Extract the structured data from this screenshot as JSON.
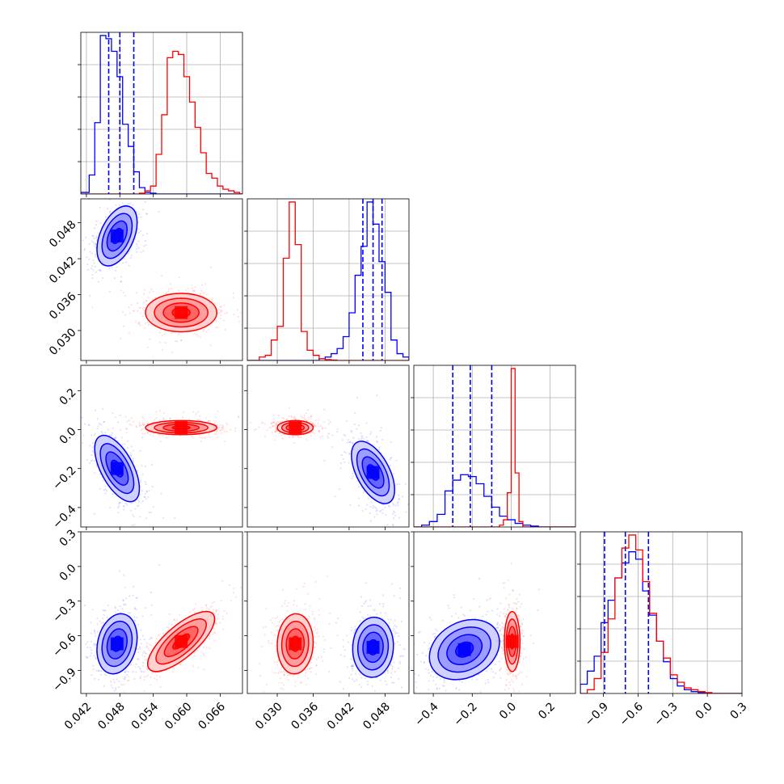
{
  "chart_data": {
    "type": "corner",
    "parameters": [
      {
        "range": [
          0.041,
          0.07
        ],
        "ticks": [
          0.042,
          0.048,
          0.054,
          0.06,
          0.066
        ],
        "tick_labels": [
          "0.042",
          "0.048",
          "0.054",
          "0.060",
          "0.066"
        ]
      },
      {
        "range": [
          0.025,
          0.052
        ],
        "ticks": [
          0.03,
          0.036,
          0.042,
          0.048
        ],
        "tick_labels": [
          "0.030",
          "0.036",
          "0.042",
          "0.048"
        ]
      },
      {
        "range": [
          -0.5,
          0.33
        ],
        "ticks": [
          -0.4,
          -0.2,
          0.0,
          0.2
        ],
        "tick_labels": [
          "−0.4",
          "−0.2",
          "0.0",
          "0.2"
        ]
      },
      {
        "range": [
          -1.1,
          0.3
        ],
        "ticks": [
          -0.9,
          -0.6,
          -0.3,
          0.0,
          0.3
        ],
        "tick_labels": [
          "−0.9",
          "−0.6",
          "−0.3",
          "0.0",
          "0.3"
        ]
      }
    ],
    "series": [
      {
        "color": "#0000ff",
        "histograms": [
          {
            "edges": [
              0.041,
              0.0425,
              0.0435,
              0.0445,
              0.0455,
              0.0465,
              0.0475,
              0.0485,
              0.0495,
              0.0505,
              0.0515,
              0.0525,
              0.0535,
              0.0545
            ],
            "counts": [
              0.01,
              0.12,
              0.45,
              1.0,
              0.98,
              0.9,
              0.74,
              0.44,
              0.3,
              0.14,
              0.04,
              0.01,
              0.005
            ]
          },
          {
            "edges": [
              0.037,
              0.038,
              0.039,
              0.04,
              0.041,
              0.042,
              0.043,
              0.044,
              0.045,
              0.046,
              0.047,
              0.048,
              0.049,
              0.05,
              0.051,
              0.052
            ],
            "counts": [
              0.01,
              0.02,
              0.04,
              0.07,
              0.14,
              0.28,
              0.5,
              0.67,
              0.93,
              0.8,
              0.58,
              0.4,
              0.12,
              0.04,
              0.02
            ]
          },
          {
            "edges": [
              -0.46,
              -0.42,
              -0.38,
              -0.34,
              -0.3,
              -0.26,
              -0.22,
              -0.18,
              -0.14,
              -0.1,
              -0.06,
              -0.02,
              0.02,
              0.06,
              0.1,
              0.14
            ],
            "counts": [
              0.01,
              0.03,
              0.07,
              0.2,
              0.26,
              0.29,
              0.28,
              0.24,
              0.17,
              0.11,
              0.06,
              0.04,
              0.02,
              0.01,
              0.005
            ]
          },
          {
            "edges": [
              -1.1,
              -1.04,
              -0.98,
              -0.92,
              -0.86,
              -0.8,
              -0.74,
              -0.68,
              -0.62,
              -0.56,
              -0.5,
              -0.44,
              -0.38,
              -0.32,
              -0.26,
              -0.2,
              -0.14,
              -0.08,
              -0.02
            ],
            "counts": [
              0.05,
              0.12,
              0.2,
              0.38,
              0.5,
              0.62,
              0.7,
              0.76,
              0.72,
              0.55,
              0.42,
              0.28,
              0.17,
              0.08,
              0.04,
              0.02,
              0.01,
              0.005
            ]
          }
        ],
        "quantiles": [
          [
            0.046,
            0.048,
            0.0505
          ],
          [
            0.0443,
            0.046,
            0.0475
          ],
          [
            -0.3,
            -0.21,
            -0.1
          ],
          [
            -0.89,
            -0.71,
            -0.51
          ]
        ],
        "clouds": {
          "0-1": {
            "mean": [
              0.0475,
              0.0458
            ],
            "sd": [
              0.0018,
              0.0025
            ],
            "rho": 0.45
          },
          "0-2": {
            "mean": [
              0.0475,
              -0.2
            ],
            "sd": [
              0.002,
              0.085
            ],
            "rho": -0.6
          },
          "1-2": {
            "mean": [
              0.046,
              -0.22
            ],
            "sd": [
              0.0018,
              0.08
            ],
            "rho": -0.55
          },
          "0-3": {
            "mean": [
              0.0475,
              -0.67
            ],
            "sd": [
              0.0018,
              0.13
            ],
            "rho": 0.2
          },
          "1-3": {
            "mean": [
              0.046,
              -0.7
            ],
            "sd": [
              0.0017,
              0.13
            ],
            "rho": 0.05
          },
          "2-3": {
            "mean": [
              -0.24,
              -0.72
            ],
            "sd": [
              0.09,
              0.13
            ],
            "rho": 0.25
          }
        }
      },
      {
        "color": "#ff0000",
        "histograms": [
          {
            "edges": [
              0.0515,
              0.0525,
              0.0535,
              0.0545,
              0.0555,
              0.0565,
              0.0575,
              0.0585,
              0.0595,
              0.0605,
              0.0615,
              0.0625,
              0.0635,
              0.0645,
              0.0655,
              0.0665,
              0.0675,
              0.0685,
              0.0695
            ],
            "counts": [
              0.005,
              0.02,
              0.05,
              0.25,
              0.5,
              0.86,
              0.9,
              0.88,
              0.74,
              0.58,
              0.42,
              0.26,
              0.13,
              0.1,
              0.05,
              0.03,
              0.02,
              0.01
            ]
          },
          {
            "edges": [
              0.027,
              0.028,
              0.029,
              0.03,
              0.031,
              0.032,
              0.033,
              0.034,
              0.035,
              0.036,
              0.037,
              0.038,
              0.039,
              0.04
            ],
            "counts": [
              0.02,
              0.03,
              0.12,
              0.2,
              0.6,
              0.93,
              0.68,
              0.17,
              0.06,
              0.03,
              0.01,
              0.005,
              0.002
            ]
          },
          {
            "edges": [
              -0.06,
              -0.04,
              -0.02,
              0.0,
              0.02,
              0.04,
              0.06
            ],
            "counts": [
              0.01,
              0.04,
              0.19,
              0.88,
              0.3,
              0.03
            ]
          },
          {
            "edges": [
              -1.04,
              -0.98,
              -0.92,
              -0.86,
              -0.8,
              -0.74,
              -0.68,
              -0.62,
              -0.56,
              -0.5,
              -0.44,
              -0.38,
              -0.32,
              -0.26,
              -0.2,
              -0.14,
              -0.08,
              -0.02,
              0.04
            ],
            "counts": [
              0.02,
              0.08,
              0.22,
              0.4,
              0.62,
              0.78,
              0.85,
              0.77,
              0.6,
              0.43,
              0.28,
              0.19,
              0.1,
              0.06,
              0.03,
              0.02,
              0.01,
              0.005
            ]
          }
        ],
        "quantiles": null,
        "clouds": {
          "0-1": {
            "mean": [
              0.059,
              0.033
            ],
            "sd": [
              0.0032,
              0.0016
            ],
            "rho": 0.0
          },
          "0-2": {
            "mean": [
              0.059,
              0.01
            ],
            "sd": [
              0.0032,
              0.018
            ],
            "rho": 0.0
          },
          "1-2": {
            "mean": [
              0.033,
              0.01
            ],
            "sd": [
              0.0015,
              0.018
            ],
            "rho": 0.0
          },
          "0-3": {
            "mean": [
              0.059,
              -0.65
            ],
            "sd": [
              0.003,
              0.13
            ],
            "rho": 0.75
          },
          "1-3": {
            "mean": [
              0.033,
              -0.67
            ],
            "sd": [
              0.0015,
              0.13
            ],
            "rho": 0.05
          },
          "2-3": {
            "mean": [
              0.005,
              -0.65
            ],
            "sd": [
              0.02,
              0.13
            ],
            "rho": 0.0
          }
        }
      }
    ]
  }
}
